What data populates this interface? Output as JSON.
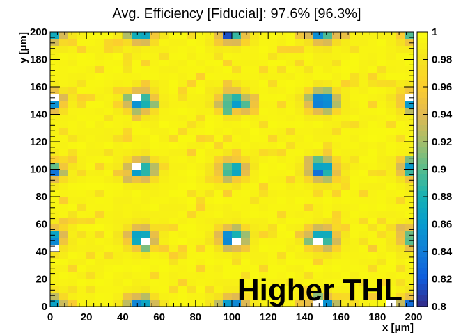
{
  "chart_data": {
    "type": "heatmap",
    "title": "Avg. Efficiency [Fiducial]: 97.6% [96.3%]",
    "xlabel": "x [μm]",
    "ylabel": "y [μm]",
    "xlim": [
      0,
      200
    ],
    "ylim": [
      0,
      200
    ],
    "zlim": [
      0.8,
      1
    ],
    "x_ticks": [
      "0",
      "20",
      "40",
      "60",
      "80",
      "100",
      "120",
      "140",
      "160",
      "180",
      "200"
    ],
    "y_ticks": [
      "0",
      "20",
      "40",
      "60",
      "80",
      "100",
      "120",
      "140",
      "160",
      "180",
      "200"
    ],
    "z_ticks": [
      "0.8",
      "0.82",
      "0.84",
      "0.86",
      "0.88",
      "0.9",
      "0.92",
      "0.94",
      "0.96",
      "0.98",
      "1"
    ],
    "colormap": "parula",
    "bin_size": 5,
    "background_value": 0.99,
    "pixel_pitch": 50,
    "hotspots": [
      {
        "x": 0,
        "y": 0,
        "min": 0.84
      },
      {
        "x": 50,
        "y": 0,
        "min": 0.84
      },
      {
        "x": 100,
        "y": 0,
        "min": 0.84
      },
      {
        "x": 150,
        "y": 0,
        "min": 0.84
      },
      {
        "x": 200,
        "y": 0,
        "min": 0.84
      },
      {
        "x": 0,
        "y": 50,
        "min": 0.84
      },
      {
        "x": 50,
        "y": 50,
        "min": 0.85
      },
      {
        "x": 100,
        "y": 50,
        "min": 0.84
      },
      {
        "x": 150,
        "y": 50,
        "min": 0.83
      },
      {
        "x": 200,
        "y": 50,
        "min": 0.85
      },
      {
        "x": 0,
        "y": 100,
        "min": 0.86
      },
      {
        "x": 50,
        "y": 100,
        "min": 0.84
      },
      {
        "x": 100,
        "y": 100,
        "min": 0.84
      },
      {
        "x": 150,
        "y": 100,
        "min": 0.83
      },
      {
        "x": 200,
        "y": 100,
        "min": 0.86
      },
      {
        "x": 0,
        "y": 150,
        "min": 0.86
      },
      {
        "x": 50,
        "y": 150,
        "min": 0.85
      },
      {
        "x": 100,
        "y": 150,
        "min": 0.84
      },
      {
        "x": 150,
        "y": 150,
        "min": 0.83
      },
      {
        "x": 200,
        "y": 150,
        "min": 0.86
      },
      {
        "x": 0,
        "y": 200,
        "min": 0.86
      },
      {
        "x": 50,
        "y": 200,
        "min": 0.86
      },
      {
        "x": 100,
        "y": 200,
        "min": 0.84
      },
      {
        "x": 150,
        "y": 200,
        "min": 0.84
      },
      {
        "x": 200,
        "y": 200,
        "min": 0.86
      }
    ],
    "empty_bins": [
      {
        "x": 200,
        "y": 0
      },
      {
        "x": 185,
        "y": 0
      },
      {
        "x": 145,
        "y": 0
      },
      {
        "x": 0,
        "y": 40
      },
      {
        "x": 45,
        "y": 150
      },
      {
        "x": 195,
        "y": 150
      },
      {
        "x": 0,
        "y": 150
      },
      {
        "x": 45,
        "y": 100
      },
      {
        "x": 50,
        "y": 45
      },
      {
        "x": 100,
        "y": 45
      },
      {
        "x": 145,
        "y": 45
      }
    ],
    "annotations": [
      "Higher THL"
    ]
  }
}
